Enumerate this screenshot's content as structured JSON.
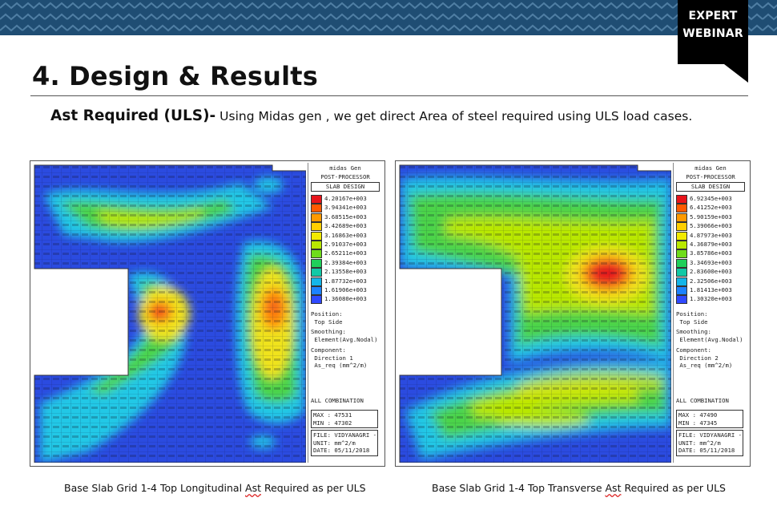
{
  "header": {
    "badge_line1": "EXPERT",
    "badge_line2": "WEBINAR",
    "title": "4. Design & Results"
  },
  "subtitle": {
    "bold": "Ast Required (ULS)-",
    "text": " Using Midas gen , we get direct Area of steel required using ULS load cases."
  },
  "colors": {
    "banner": "#1f4d73",
    "banner_stripe": "#4f7ea3",
    "badge": "#000000"
  },
  "panels": [
    {
      "legend": {
        "head1": "midas Gen",
        "head2": "POST-PROCESSOR",
        "box": "SLAB DESIGN",
        "values": [
          "4.20167e+003",
          "3.94341e+003",
          "3.68515e+003",
          "3.42689e+003",
          "3.16863e+003",
          "2.91037e+003",
          "2.65211e+003",
          "2.39384e+003",
          "2.13558e+003",
          "1.87732e+003",
          "1.61906e+003",
          "1.36080e+003"
        ],
        "position": "Position:\n Top Side",
        "smoothing": "Smoothing:\n Element(Avg.Nodal)",
        "component": "Component:\n Direction 1\n As_req (mm^2/m)",
        "combination": "ALL COMBINATION",
        "max": "MAX : 47531",
        "min": "MIN : 47302",
        "file": "FILE: VIDYANAGRI -",
        "unit": "UNIT: mm^2/m",
        "date": "DATE: 05/11/2018"
      },
      "caption_pre": "Base Slab Grid 1-4 Top Longitudinal ",
      "caption_ast": "Ast",
      "caption_post": " Required as per ULS"
    },
    {
      "legend": {
        "head1": "midas Gen",
        "head2": "POST-PROCESSOR",
        "box": "SLAB DESIGN",
        "values": [
          "6.92345e+003",
          "6.41252e+003",
          "5.90159e+003",
          "5.39066e+003",
          "4.87973e+003",
          "4.36879e+003",
          "3.85786e+003",
          "3.34693e+003",
          "2.83600e+003",
          "2.32506e+003",
          "1.81413e+003",
          "1.30320e+003"
        ],
        "position": "Position:\n Top Side",
        "smoothing": "Smoothing:\n Element(Avg.Nodal)",
        "component": "Component:\n Direction 2\n As_req (mm^2/m)",
        "combination": "ALL COMBINATION",
        "max": "MAX : 47490",
        "min": "MIN : 47345",
        "file": "FILE: VIDYANAGRI -",
        "unit": "UNIT: mm^2/m",
        "date": "DATE: 05/11/2018"
      },
      "caption_pre": "Base Slab Grid 1-4 Top Transverse ",
      "caption_ast": "Ast",
      "caption_post": " Required as per ULS"
    }
  ],
  "scale_colors": [
    "#e8141a",
    "#ff5a00",
    "#ff9a00",
    "#ffcf00",
    "#f2ea00",
    "#b9e800",
    "#6fdc1a",
    "#1fd05a",
    "#12c9a6",
    "#14b5e8",
    "#1c82ff",
    "#2f49ff"
  ],
  "plot_colors": {
    "blue": "#2b4be0",
    "cyan": "#22c8e6",
    "green": "#4cd44a",
    "yellow": "#f0e31a",
    "orange": "#ff8a10",
    "red": "#e8141a"
  }
}
